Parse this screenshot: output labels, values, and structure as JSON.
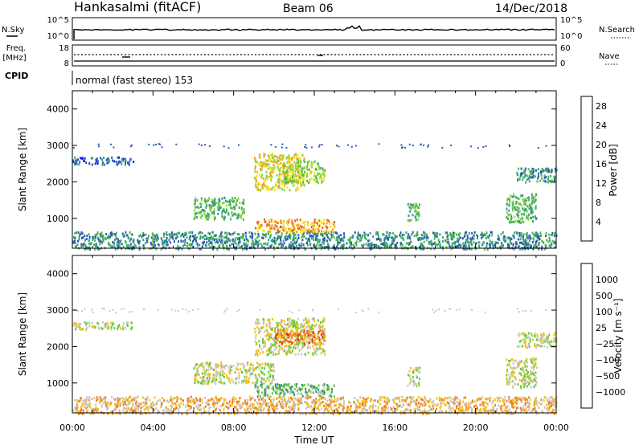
{
  "header": {
    "station": "Hankasalmi (fitACF)",
    "beam": "Beam 06",
    "date": "14/Dec/2018"
  },
  "noise_panel": {
    "left_label": "N.Sky",
    "right_label": "N.Search",
    "left_ticks": [
      "10^5",
      "10^0"
    ],
    "right_ticks": [
      "10^5",
      "10^0"
    ]
  },
  "freq_panel": {
    "left_label_1": "Freq.",
    "left_label_2": "[MHz]",
    "right_label": "Nave",
    "left_ticks": [
      "18",
      "8"
    ],
    "right_ticks": [
      "60",
      "0"
    ]
  },
  "cpid": {
    "label": "CPID",
    "value": "normal (fast stereo) 153"
  },
  "chart_data": [
    {
      "type": "heatmap",
      "name": "power",
      "ylabel": "Slant Range [km]",
      "ylim": [
        180,
        4500
      ],
      "yticks": [
        "1000",
        "2000",
        "3000",
        "4000"
      ],
      "xlim": [
        0,
        24
      ],
      "colorbar": {
        "label": "Power [dB]",
        "range": [
          0,
          30
        ],
        "ticks": [
          "4",
          "8",
          "12",
          "16",
          "20",
          "24",
          "28"
        ],
        "colors": [
          "#1a1aff",
          "#2a5ab0",
          "#3a9a88",
          "#4bb84b",
          "#8fd640",
          "#f0e020",
          "#f0a020",
          "#f06010",
          "#e02010"
        ]
      },
      "regions": [
        {
          "t0": 0.0,
          "t1": 24.0,
          "r0": 180,
          "r1": 650,
          "level": 2
        },
        {
          "t0": 0.0,
          "t1": 3.0,
          "r0": 2500,
          "r1": 2700,
          "level": 1
        },
        {
          "t0": 6.0,
          "t1": 8.5,
          "r0": 1000,
          "r1": 1600,
          "level": 3
        },
        {
          "t0": 9.0,
          "t1": 13.0,
          "r0": 650,
          "r1": 1000,
          "level": 6
        },
        {
          "t0": 9.0,
          "t1": 11.5,
          "r0": 1800,
          "r1": 2800,
          "level": 5
        },
        {
          "t0": 10.5,
          "t1": 12.5,
          "r0": 2000,
          "r1": 2600,
          "level": 4
        },
        {
          "t0": 16.6,
          "t1": 17.2,
          "r0": 950,
          "r1": 1450,
          "level": 3
        },
        {
          "t0": 21.5,
          "t1": 23.0,
          "r0": 900,
          "r1": 1700,
          "level": 3
        },
        {
          "t0": 22.0,
          "t1": 24.0,
          "r0": 2000,
          "r1": 2400,
          "level": 2
        }
      ]
    },
    {
      "type": "heatmap",
      "name": "velocity",
      "ylabel": "Slant Range [km]",
      "ylim": [
        180,
        4500
      ],
      "yticks": [
        "1000",
        "2000",
        "3000",
        "4000"
      ],
      "xlim": [
        0,
        24
      ],
      "xlabel": "Time UT",
      "xticks": [
        "00:00",
        "04:00",
        "08:00",
        "12:00",
        "16:00",
        "20:00",
        "00:00"
      ],
      "colorbar": {
        "label": "Velocity [m s⁻¹]",
        "ticks": [
          "1000",
          "500",
          "100",
          "25",
          "−25",
          "−100",
          "−500",
          "−1000"
        ],
        "colors": [
          "#2244bb",
          "#2a66aa",
          "#339966",
          "#66cc33",
          "#c8c8c8",
          "#f0c020",
          "#f08020",
          "#f03010",
          "#e01010"
        ]
      },
      "regions": [
        {
          "t0": 0.0,
          "t1": 24.0,
          "r0": 180,
          "r1": 650,
          "level": 5
        },
        {
          "t0": 0.0,
          "t1": 3.0,
          "r0": 2500,
          "r1": 2700,
          "level": 4
        },
        {
          "t0": 6.0,
          "t1": 10.0,
          "r0": 1000,
          "r1": 1600,
          "level": 4
        },
        {
          "t0": 9.0,
          "t1": 13.0,
          "r0": 650,
          "r1": 1000,
          "level": 3
        },
        {
          "t0": 9.0,
          "t1": 12.5,
          "r0": 1800,
          "r1": 2800,
          "level": 4
        },
        {
          "t0": 10.0,
          "t1": 12.5,
          "r0": 2100,
          "r1": 2500,
          "level": 6
        },
        {
          "t0": 16.6,
          "t1": 17.2,
          "r0": 950,
          "r1": 1450,
          "level": 4
        },
        {
          "t0": 21.5,
          "t1": 23.0,
          "r0": 900,
          "r1": 1700,
          "level": 4
        },
        {
          "t0": 22.0,
          "t1": 24.0,
          "r0": 2000,
          "r1": 2400,
          "level": 4
        }
      ]
    }
  ]
}
